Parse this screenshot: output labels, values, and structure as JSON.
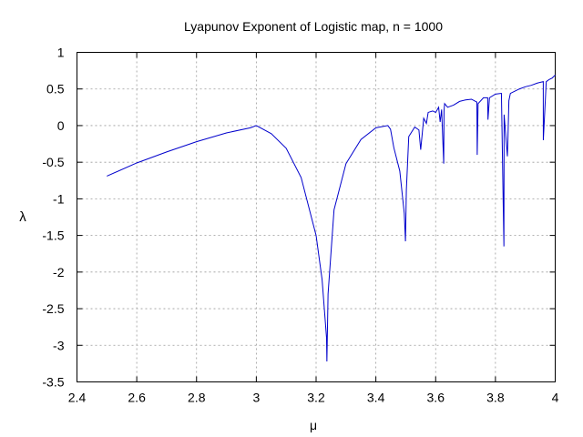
{
  "chart_data": {
    "type": "line",
    "title": "Lyapunov Exponent of Logistic map, n = 1000",
    "xlabel": "μ",
    "ylabel": "λ",
    "xlim": [
      2.4,
      4.0
    ],
    "ylim": [
      -3.5,
      1.0
    ],
    "x_ticks": [
      2.4,
      2.6,
      2.8,
      3.0,
      3.2,
      3.4,
      3.6,
      3.8,
      4.0
    ],
    "x_tick_labels": [
      "2.4",
      "2.6",
      "2.8",
      "3",
      "3.2",
      "3.4",
      "3.6",
      "3.8",
      "4"
    ],
    "y_ticks": [
      1,
      0.5,
      0,
      -0.5,
      -1,
      -1.5,
      -2,
      -2.5,
      -3,
      -3.5
    ],
    "y_tick_labels": [
      "1",
      "0.5",
      "0",
      "-0.5",
      "-1",
      "-1.5",
      "-2",
      "-2.5",
      "-3",
      "-3.5"
    ],
    "grid": true,
    "line_color": "#0000cc",
    "series": [
      {
        "x": [
          2.5,
          2.6,
          2.7,
          2.8,
          2.9,
          2.98,
          3.0,
          3.05,
          3.1,
          3.15,
          3.2,
          3.22,
          3.235,
          3.2361,
          3.24,
          3.26,
          3.3,
          3.35,
          3.4,
          3.44,
          3.449,
          3.46,
          3.48,
          3.495,
          3.499,
          3.502,
          3.51,
          3.53,
          3.544,
          3.55,
          3.56,
          3.569,
          3.575,
          3.59,
          3.6,
          3.61,
          3.615,
          3.62,
          3.627,
          3.628,
          3.63,
          3.64,
          3.66,
          3.68,
          3.7,
          3.72,
          3.738,
          3.739,
          3.742,
          3.76,
          3.774,
          3.775,
          3.78,
          3.8,
          3.82,
          3.8284,
          3.829,
          3.84,
          3.842,
          3.845,
          3.85,
          3.86,
          3.88,
          3.9,
          3.92,
          3.94,
          3.96,
          3.9602,
          3.97,
          3.98,
          3.99,
          4.0
        ],
        "y": [
          -0.69,
          -0.51,
          -0.36,
          -0.22,
          -0.1,
          -0.03,
          0.0,
          -0.11,
          -0.31,
          -0.71,
          -1.5,
          -2.1,
          -2.9,
          -3.22,
          -2.3,
          -1.15,
          -0.52,
          -0.19,
          -0.03,
          0.0,
          -0.05,
          -0.3,
          -0.62,
          -1.2,
          -1.58,
          -0.88,
          -0.15,
          -0.02,
          -0.06,
          -0.33,
          0.1,
          0.03,
          0.18,
          0.2,
          0.18,
          0.25,
          0.05,
          0.22,
          -0.52,
          0.2,
          0.3,
          0.25,
          0.28,
          0.33,
          0.35,
          0.36,
          0.32,
          -0.4,
          0.3,
          0.38,
          0.38,
          0.08,
          0.38,
          0.43,
          0.44,
          -1.65,
          0.15,
          -0.42,
          -0.15,
          0.34,
          0.44,
          0.46,
          0.5,
          0.53,
          0.55,
          0.58,
          0.6,
          -0.2,
          0.6,
          0.63,
          0.65,
          0.69
        ]
      }
    ]
  }
}
